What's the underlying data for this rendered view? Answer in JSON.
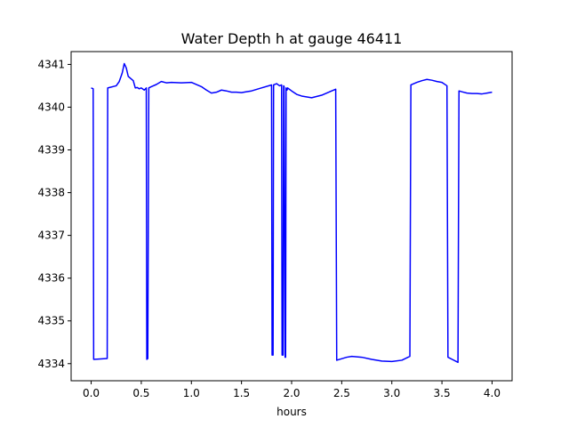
{
  "chart_data": {
    "type": "line",
    "title": "Water Depth h at gauge 46411",
    "xlabel": "hours",
    "ylabel": "",
    "xlim": [
      -0.2,
      4.2
    ],
    "ylim": [
      4333.6,
      4341.3
    ],
    "xticks": [
      0.0,
      0.5,
      1.0,
      1.5,
      2.0,
      2.5,
      3.0,
      3.5,
      4.0
    ],
    "xtick_labels": [
      "0.0",
      "0.5",
      "1.0",
      "1.5",
      "2.0",
      "2.5",
      "3.0",
      "3.5",
      "4.0"
    ],
    "yticks": [
      4334,
      4335,
      4336,
      4337,
      4338,
      4339,
      4340,
      4341
    ],
    "ytick_labels": [
      "4334",
      "4335",
      "4336",
      "4337",
      "4338",
      "4339",
      "4340",
      "4341"
    ],
    "grid": false,
    "series": [
      {
        "color": "#0000ff",
        "x": [
          0.0,
          0.02,
          0.025,
          0.16,
          0.165,
          0.25,
          0.28,
          0.31,
          0.33,
          0.35,
          0.37,
          0.39,
          0.42,
          0.44,
          0.46,
          0.48,
          0.5,
          0.53,
          0.55,
          0.555,
          0.565,
          0.575,
          0.6,
          0.65,
          0.7,
          0.75,
          0.8,
          0.9,
          1.0,
          1.1,
          1.15,
          1.2,
          1.25,
          1.3,
          1.35,
          1.4,
          1.45,
          1.5,
          1.55,
          1.6,
          1.7,
          1.8,
          1.805,
          1.815,
          1.82,
          1.85,
          1.88,
          1.9,
          1.905,
          1.915,
          1.92,
          1.925,
          1.935,
          1.94,
          1.945,
          1.955,
          1.96,
          2.0,
          2.05,
          2.1,
          2.2,
          2.3,
          2.4,
          2.44,
          2.45,
          2.55,
          2.6,
          2.7,
          2.8,
          2.9,
          3.0,
          3.1,
          3.18,
          3.19,
          3.25,
          3.3,
          3.35,
          3.4,
          3.45,
          3.5,
          3.55,
          3.56,
          3.66,
          3.67,
          3.7,
          3.75,
          3.8,
          3.85,
          3.9,
          3.95,
          4.0
        ],
        "y": [
          4340.45,
          4340.43,
          4334.1,
          4334.12,
          4340.45,
          4340.5,
          4340.6,
          4340.8,
          4341.02,
          4340.92,
          4340.72,
          4340.68,
          4340.62,
          4340.45,
          4340.46,
          4340.43,
          4340.45,
          4340.4,
          4340.45,
          4334.1,
          4334.12,
          4340.45,
          4340.48,
          4340.53,
          4340.6,
          4340.57,
          4340.58,
          4340.57,
          4340.58,
          4340.48,
          4340.4,
          4340.33,
          4340.35,
          4340.4,
          4340.38,
          4340.35,
          4340.35,
          4340.34,
          4340.36,
          4340.38,
          4340.45,
          4340.52,
          4334.2,
          4334.2,
          4340.52,
          4340.55,
          4340.5,
          4340.52,
          4334.2,
          4334.2,
          4340.5,
          4340.48,
          4334.15,
          4334.15,
          4340.45,
          4340.4,
          4340.45,
          4340.38,
          4340.3,
          4340.26,
          4340.22,
          4340.28,
          4340.38,
          4340.42,
          4334.08,
          4334.15,
          4334.17,
          4334.15,
          4334.1,
          4334.06,
          4334.05,
          4334.08,
          4334.17,
          4340.52,
          4340.58,
          4340.62,
          4340.65,
          4340.63,
          4340.6,
          4340.58,
          4340.5,
          4334.15,
          4334.03,
          4340.38,
          4340.36,
          4340.33,
          4340.32,
          4340.32,
          4340.31,
          4340.33,
          4340.35
        ]
      }
    ]
  }
}
